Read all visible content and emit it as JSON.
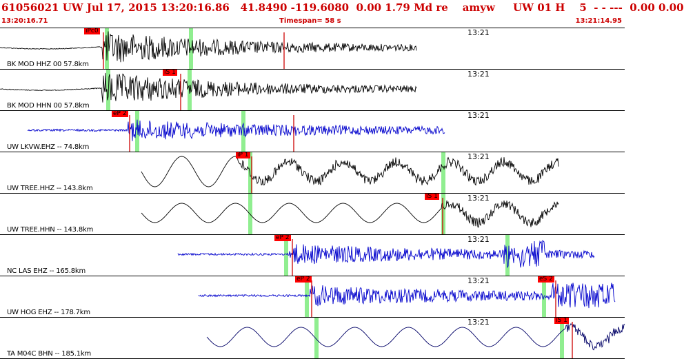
{
  "header": {
    "title": "61056021 UW Jul 17, 2015 13:20:16.86   41.8490 -119.6080  0.00 1.79 Md re    amyw     UW 01 H    5  - - ---  0.00 0.00",
    "start_time": "13:20:16.71",
    "timespan": "Timespan=  58 s",
    "end_time": "13:21:14.95"
  },
  "colors": {
    "header_text": "#cc0000",
    "pick_flag": "#ff0000",
    "pick_line": "#cc0000",
    "pick_band": "#90ee90",
    "trace_black": "#000000",
    "trace_blue": "#0000cc",
    "trace_navy": "#000066"
  },
  "traces": [
    {
      "label": "BK MOD HHZ 00 57.8km",
      "time_mark": "13:21",
      "color": "black",
      "kind": "local",
      "picks": [
        {
          "label": "iPc0"
        }
      ]
    },
    {
      "label": "BK MOD HHN 00 57.8km",
      "time_mark": "13:21",
      "color": "black",
      "kind": "local",
      "picks": [
        {
          "label": "iS 1"
        }
      ]
    },
    {
      "label": "UW LKVW.EHZ -- 74.8km",
      "time_mark": "13:21",
      "color": "blue",
      "kind": "noisy",
      "picks": [
        {
          "label": "eP 2"
        }
      ]
    },
    {
      "label": "UW TREE.HHZ -- 143.8km",
      "time_mark": "13:21",
      "color": "black",
      "kind": "wave",
      "picks": [
        {
          "label": "iP 1"
        }
      ]
    },
    {
      "label": "UW TREE.HHN -- 143.8km",
      "time_mark": "13:21",
      "color": "black",
      "kind": "wave",
      "picks": [
        {
          "label": "iS 1"
        }
      ]
    },
    {
      "label": "NC LAS EHZ -- 165.8km",
      "time_mark": "13:21",
      "color": "blue",
      "kind": "noisy",
      "picks": [
        {
          "label": "eP 2"
        }
      ]
    },
    {
      "label": "UW HOG EHZ -- 178.7km",
      "time_mark": "13:21",
      "color": "blue",
      "kind": "noisy",
      "picks": [
        {
          "label": "eP 2"
        },
        {
          "label": "eS 2"
        }
      ]
    },
    {
      "label": "TA M04C BHN -- 185.1km",
      "time_mark": "13:21",
      "color": "navy",
      "kind": "wave",
      "picks": [
        {
          "label": "iS 1"
        }
      ]
    }
  ]
}
